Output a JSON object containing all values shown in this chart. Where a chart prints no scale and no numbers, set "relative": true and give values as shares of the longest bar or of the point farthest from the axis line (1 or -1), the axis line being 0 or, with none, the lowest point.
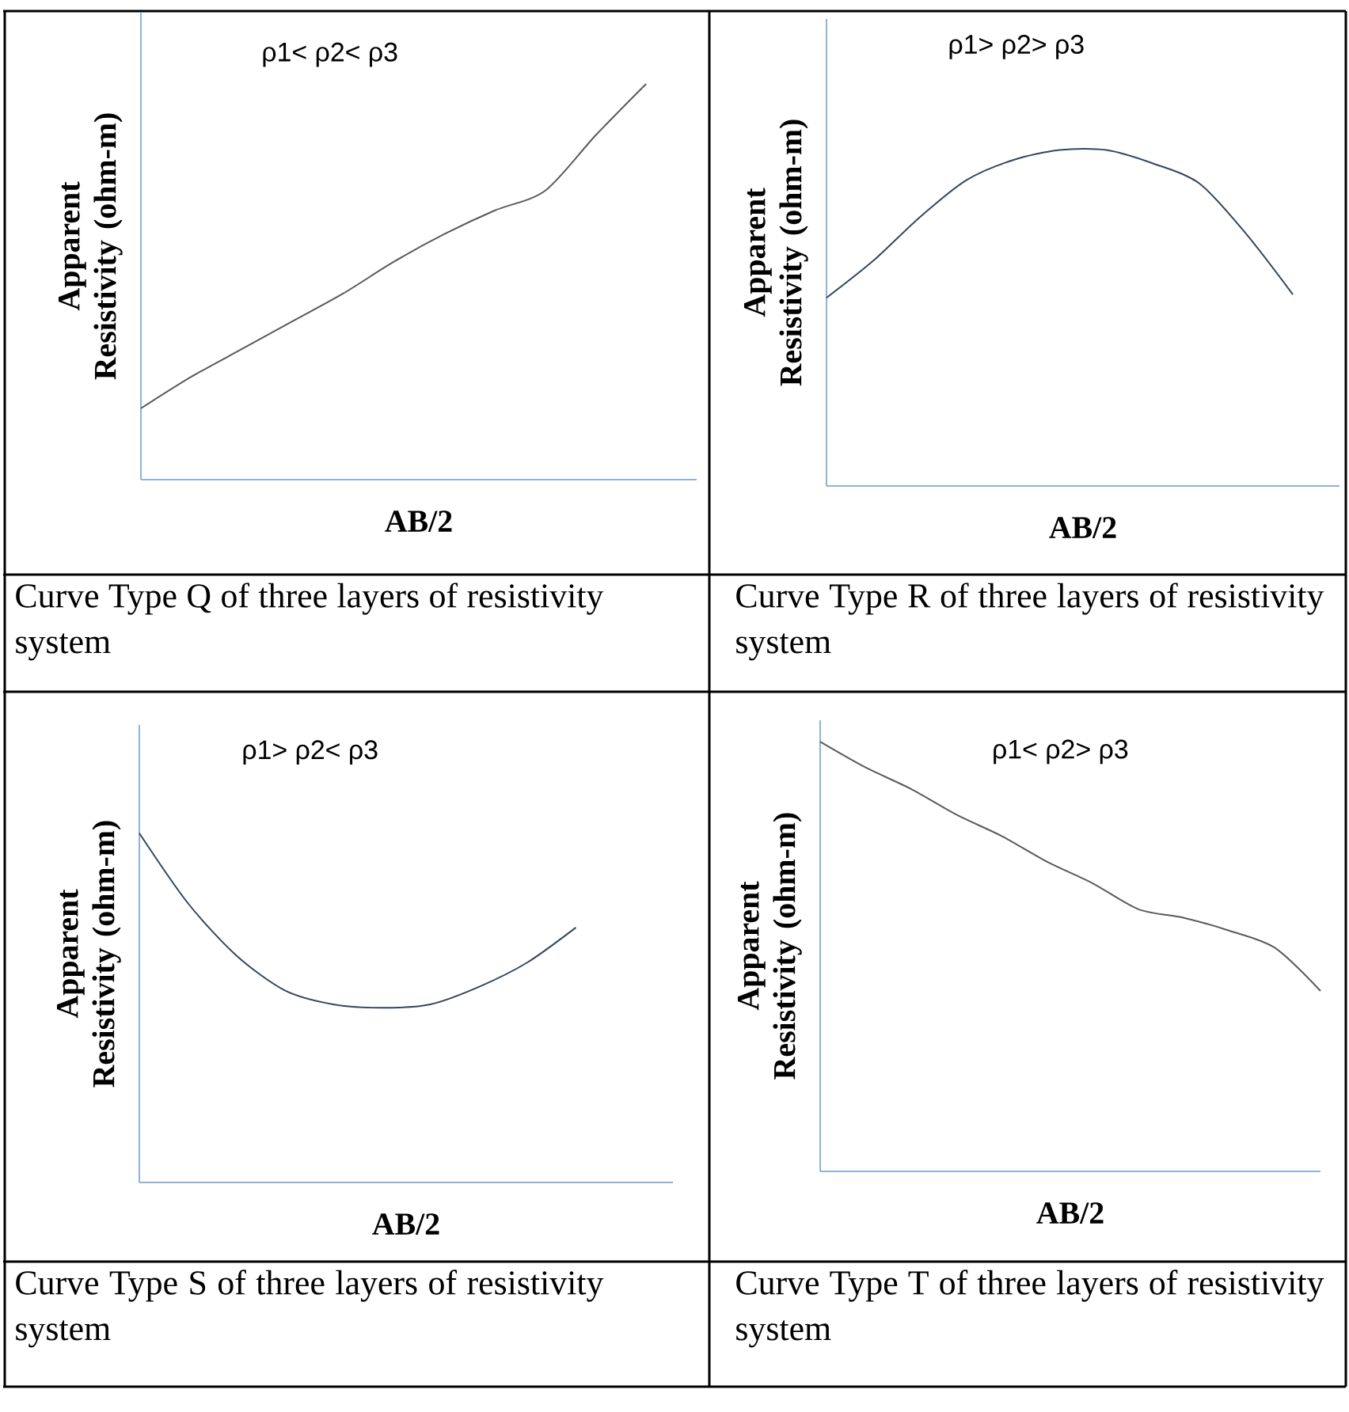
{
  "chart_data": [
    {
      "type": "line",
      "categories": [
        null,
        null,
        null,
        null,
        null,
        null,
        null,
        null,
        null,
        null,
        null,
        null
      ],
      "values": [
        0.18,
        0.26,
        0.33,
        0.4,
        0.47,
        0.55,
        0.62,
        0.68,
        0.73,
        0.87,
        1.0,
        null
      ],
      "color": "#5a5a5a",
      "relative": true,
      "xlabel": "AB/2",
      "ylabel": "Apparent Resistivity (ohm-m)",
      "annotations": [
        "ρ1< ρ2< ρ3",
        "Curve Type Q of three layers of resistivity system"
      ]
    },
    {
      "type": "line",
      "categories": [
        null,
        null,
        null,
        null,
        null,
        null,
        null,
        null,
        null,
        null,
        null,
        null
      ],
      "values": [
        0.56,
        0.67,
        0.8,
        0.91,
        0.97,
        1.0,
        1.0,
        0.96,
        0.9,
        0.75,
        0.57,
        null
      ],
      "color": "#34465c",
      "relative": true,
      "xlabel": "AB/2",
      "ylabel": "Apparent Resistivity (ohm-m)",
      "annotations": [
        "ρ1> ρ2> ρ3",
        "Curve Type R of three layers of resistivity system"
      ]
    },
    {
      "type": "line",
      "categories": [
        null,
        null,
        null,
        null,
        null,
        null,
        null,
        null,
        null,
        null,
        null,
        null
      ],
      "values": [
        1.0,
        0.8,
        0.65,
        0.55,
        0.51,
        0.5,
        0.51,
        0.56,
        0.63,
        0.73,
        null,
        null
      ],
      "color": "#34465c",
      "relative": true,
      "xlabel": "AB/2",
      "ylabel": "Apparent Resistivity (ohm-m)",
      "annotations": [
        "ρ1> ρ2< ρ3",
        "Curve Type S of three layers of resistivity system"
      ]
    },
    {
      "type": "line",
      "categories": [
        null,
        null,
        null,
        null,
        null,
        null,
        null,
        null,
        null,
        null,
        null,
        null
      ],
      "values": [
        1.0,
        0.94,
        0.89,
        0.83,
        0.78,
        0.72,
        0.67,
        0.61,
        0.59,
        0.56,
        0.52,
        0.42
      ],
      "color": "#5a5a5a",
      "relative": true,
      "xlabel": "AB/2",
      "ylabel": "Apparent Resistivity (ohm-m)",
      "annotations": [
        "ρ1< ρ2> ρ3",
        "Curve Type T of three layers of resistivity system"
      ]
    }
  ]
}
